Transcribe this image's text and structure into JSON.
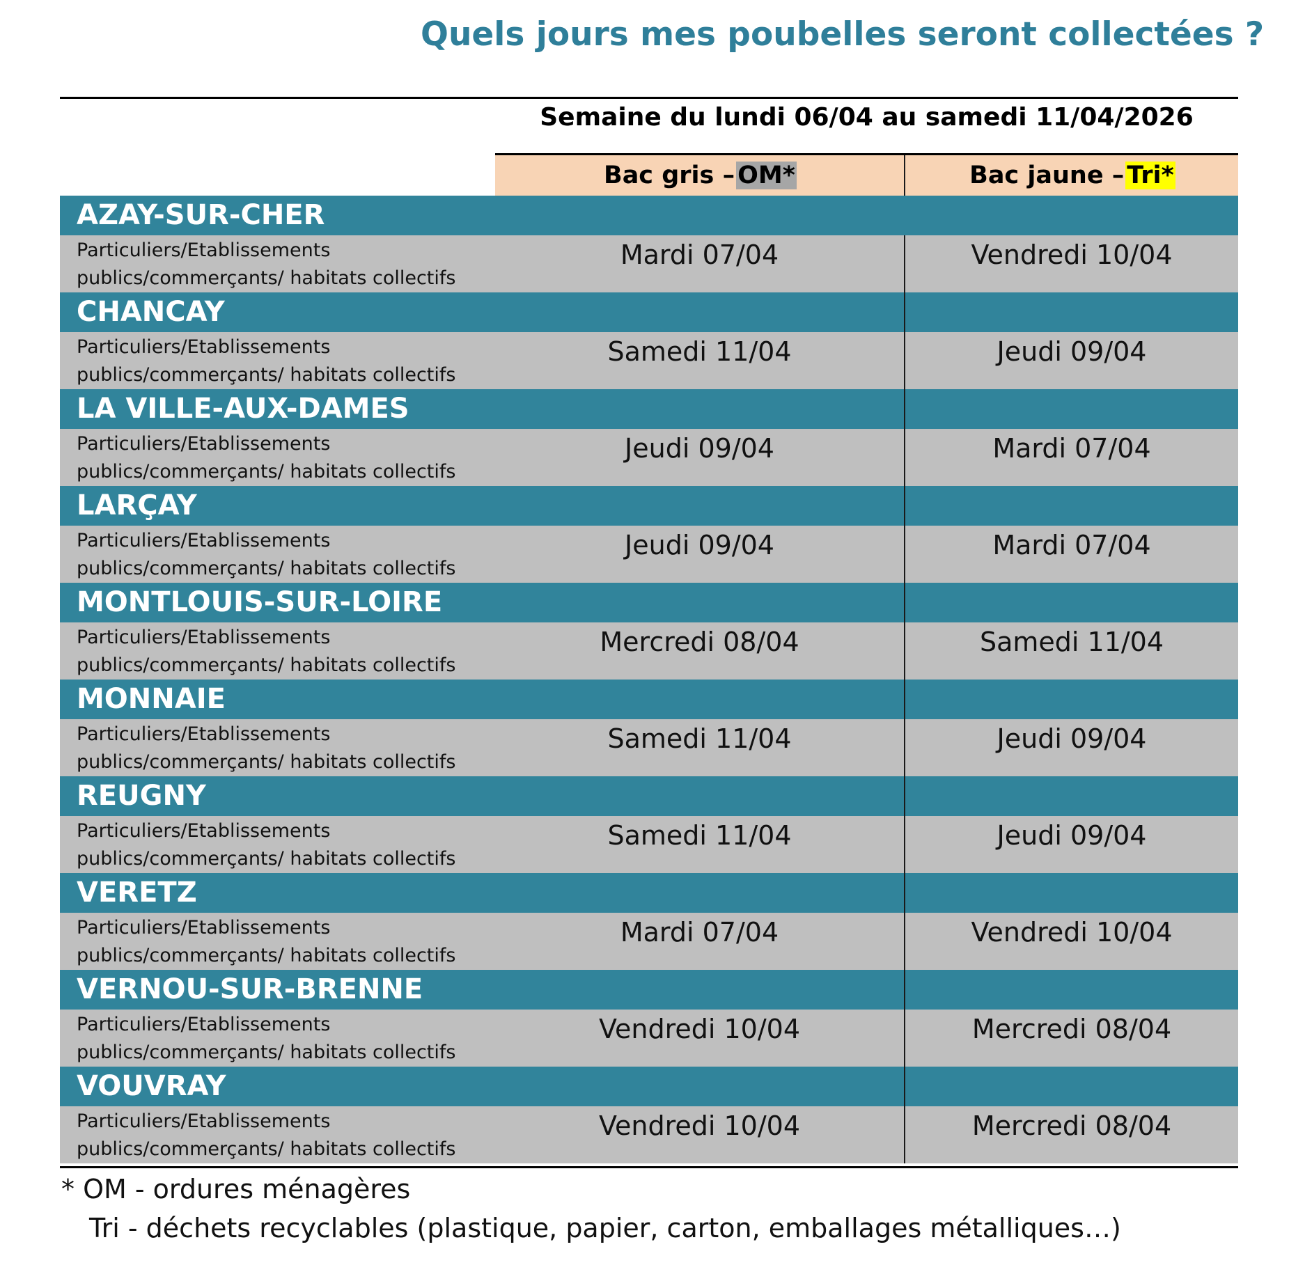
{
  "title": "Quels jours mes poubelles seront collectées ?",
  "week": "Semaine du lundi 06/04 au samedi 11/04/2026",
  "headers": {
    "gris_prefix": "Bac gris – ",
    "gris_tag": "OM*",
    "jaune_prefix": "Bac jaune – ",
    "jaune_tag": "Tri*"
  },
  "desc_line1": "Particuliers/Etablissements",
  "desc_line2": "publics/commerçants/ habitats collectifs",
  "communes": [
    {
      "name": "AZAY-SUR-CHER",
      "gris": "Mardi 07/04",
      "jaune": "Vendredi 10/04"
    },
    {
      "name": "CHANCAY",
      "gris": "Samedi 11/04",
      "jaune": "Jeudi 09/04"
    },
    {
      "name": "LA VILLE-AUX-DAMES",
      "gris": "Jeudi 09/04",
      "jaune": "Mardi 07/04"
    },
    {
      "name": "LARÇAY",
      "gris": "Jeudi 09/04",
      "jaune": "Mardi 07/04"
    },
    {
      "name": "MONTLOUIS-SUR-LOIRE",
      "gris": "Mercredi 08/04",
      "jaune": "Samedi 11/04"
    },
    {
      "name": "MONNAIE",
      "gris": "Samedi 11/04",
      "jaune": "Jeudi 09/04"
    },
    {
      "name": "REUGNY",
      "gris": "Samedi 11/04",
      "jaune": "Jeudi 09/04"
    },
    {
      "name": "VERETZ",
      "gris": "Mardi 07/04",
      "jaune": "Vendredi 10/04"
    },
    {
      "name": "VERNOU-SUR-BRENNE",
      "gris": "Vendredi 10/04",
      "jaune": "Mercredi 08/04"
    },
    {
      "name": "VOUVRAY",
      "gris": "Vendredi 10/04",
      "jaune": "Mercredi 08/04"
    }
  ],
  "notes": {
    "om": "* OM - ordures ménagères",
    "tri": "Tri - déchets recyclables (plastique, papier, carton, emballages métalliques…)"
  },
  "colors": {
    "title": "#2f7f9a",
    "commune_band": "#31849b",
    "row_bg": "#bfbfbf",
    "header_bg": "#f8d4b5",
    "om_highlight": "#a6a6a6",
    "tri_highlight": "#ffff00"
  }
}
